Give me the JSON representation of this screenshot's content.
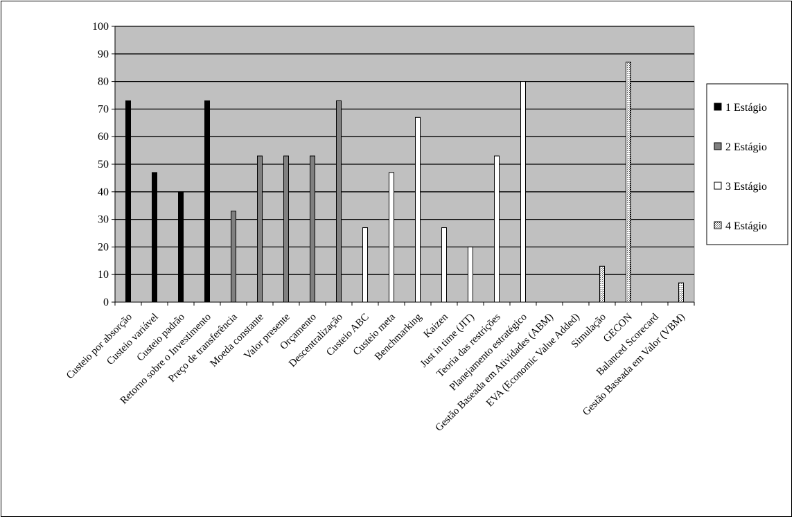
{
  "chart_data": {
    "type": "bar",
    "title": "",
    "xlabel": "",
    "ylabel": "",
    "ylim": [
      0,
      100
    ],
    "yticks": [
      0,
      10,
      20,
      30,
      40,
      50,
      60,
      70,
      80,
      90,
      100
    ],
    "grid": true,
    "legend_position": "right",
    "categories": [
      "Custeio por absorção",
      "Custeio variável",
      "Custeio padrão",
      "Retorno sobre o Investimento",
      "Preço de transferência",
      "Moeda constante",
      "Valor presente",
      "Orçamento",
      "Descentralização",
      "Custeio ABC",
      "Custeio meta",
      "Benchmarking",
      "Kaizen",
      "Just in time (JIT)",
      "Teoria das restrições",
      "Planejamento estratégico",
      "Gestão Baseada em Atividades (ABM)",
      "EVA (Economic Value Added)",
      "Simulação",
      "GECON",
      "Balanced Scorecard",
      "Gestão Baseada em Valor (VBM)"
    ],
    "series": [
      {
        "name": "1 Estágio",
        "color": "#000000",
        "pattern": "solid",
        "values": [
          73,
          47,
          40,
          73,
          0,
          0,
          0,
          0,
          0,
          0,
          0,
          0,
          0,
          0,
          0,
          0,
          0,
          0,
          0,
          0,
          0,
          0
        ]
      },
      {
        "name": "2 Estágio",
        "color": "#808080",
        "pattern": "solid",
        "values": [
          0,
          0,
          0,
          0,
          33,
          53,
          53,
          53,
          73,
          0,
          0,
          0,
          0,
          0,
          0,
          0,
          0,
          0,
          0,
          0,
          0,
          0
        ]
      },
      {
        "name": "3 Estágio",
        "color": "#ffffff",
        "pattern": "solid",
        "values": [
          0,
          0,
          0,
          0,
          0,
          0,
          0,
          0,
          0,
          27,
          47,
          67,
          27,
          20,
          53,
          80,
          0,
          0,
          0,
          0,
          0,
          0
        ]
      },
      {
        "name": "4 Estágio",
        "color": "#ffffff",
        "pattern": "dotted",
        "values": [
          0,
          0,
          0,
          0,
          0,
          0,
          0,
          0,
          0,
          0,
          0,
          0,
          0,
          0,
          0,
          0,
          0,
          0,
          13,
          87,
          0,
          7
        ]
      }
    ],
    "plot_background": "#c0c0c0"
  }
}
